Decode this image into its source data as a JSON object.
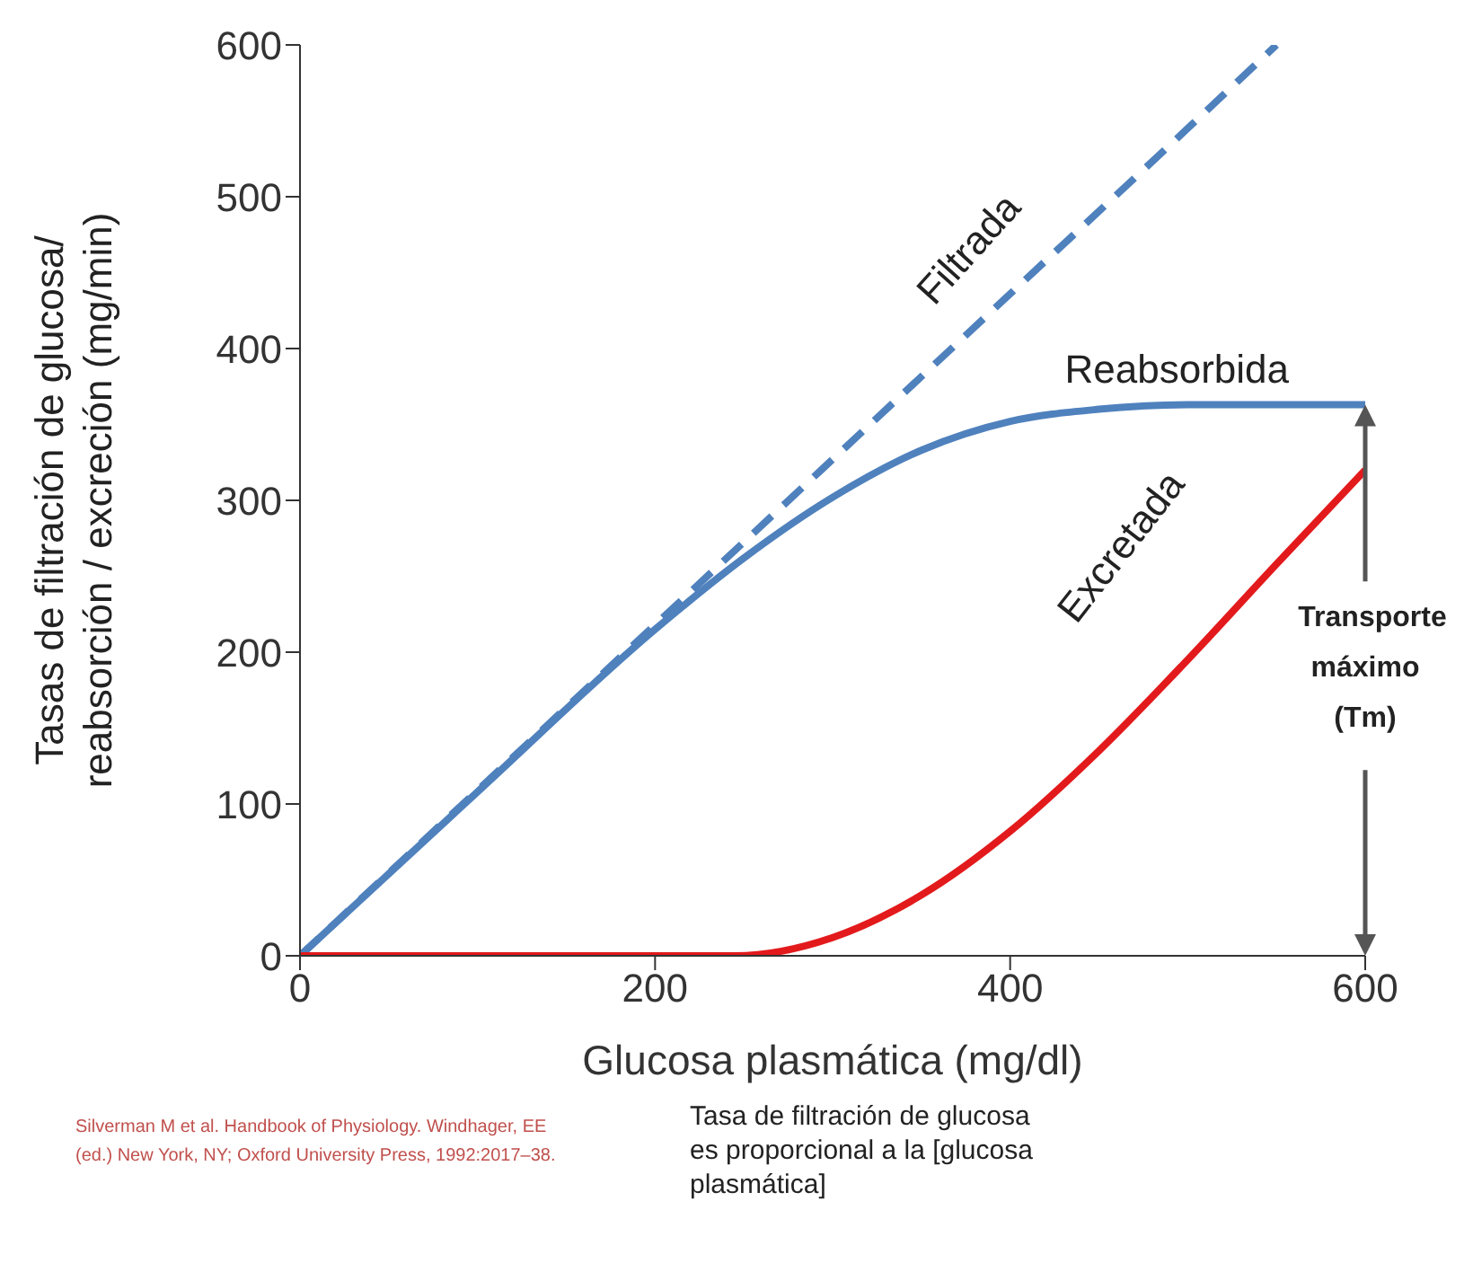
{
  "chart_data": {
    "type": "line",
    "xlabel": "Glucosa plasmática (mg/dl)",
    "ylabel": "Tasas de filtración de glucosa/\nreabsorción / excreción  (mg/min)",
    "xlim": [
      0,
      600
    ],
    "xticks": [
      0,
      200,
      400,
      600
    ],
    "ylim": [
      0,
      600
    ],
    "yticks": [
      0,
      100,
      200,
      300,
      400,
      500,
      600
    ],
    "grid": false,
    "legend": false,
    "series": [
      {
        "name": "Filtrada",
        "color": "#4f81bd",
        "line_style": "dashed",
        "x": [
          0,
          100,
          200,
          300,
          400,
          500,
          550
        ],
        "values": [
          0,
          109,
          218,
          327,
          436,
          545,
          600
        ]
      },
      {
        "name": "Reabsorbida",
        "color": "#4f81bd",
        "line_style": "solid",
        "x": [
          0,
          100,
          200,
          250,
          300,
          350,
          400,
          450,
          500,
          600
        ],
        "values": [
          0,
          108,
          215,
          262,
          302,
          333,
          352,
          360,
          363,
          363
        ]
      },
      {
        "name": "Excretada",
        "color": "#e31a1c",
        "line_style": "solid",
        "x": [
          0,
          100,
          200,
          245,
          300,
          350,
          400,
          450,
          500,
          550,
          600
        ],
        "values": [
          0,
          0,
          0,
          0,
          12,
          40,
          82,
          135,
          195,
          258,
          320
        ]
      }
    ],
    "annotations": [
      "Transporte máximo (Tm)",
      "Silverman M et al. Handbook of Physiology. Windhager, EE (ed.) New York, NY; Oxford University Press, 1992:2017–38.",
      "Tasa de filtración de glucosa es proporcional a la [glucosa plasmática]"
    ]
  }
}
